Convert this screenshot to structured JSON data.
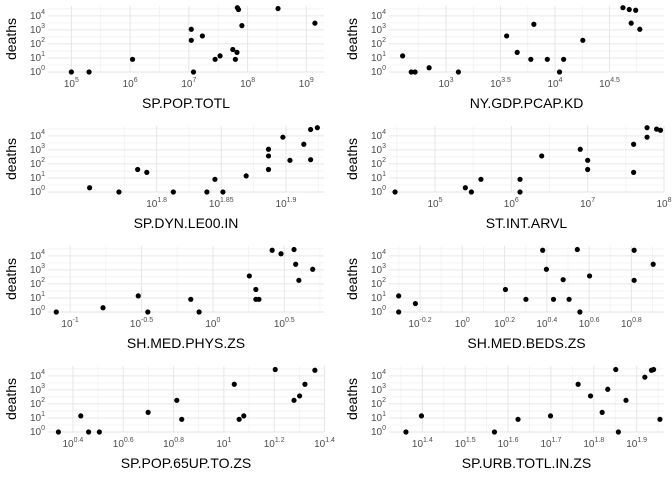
{
  "chart_data": [
    {
      "type": "scatter",
      "xlabel": "SP.POP.TOTL",
      "ylabel": "deaths",
      "xscale": "log10",
      "yscale": "log10",
      "xlim": [
        40000,
        2000000000
      ],
      "ylim": [
        1,
        50000
      ],
      "xticks": [
        "10^5",
        "10^6",
        "10^7",
        "10^8",
        "10^9"
      ],
      "yticks": [
        "10^0",
        "10^1",
        "10^2",
        "10^3",
        "10^4"
      ],
      "points": [
        [
          100000,
          1
        ],
        [
          200000,
          1
        ],
        [
          1100000,
          8
        ],
        [
          11000000,
          1100
        ],
        [
          11000000,
          180
        ],
        [
          12000000,
          1
        ],
        [
          17000000,
          370
        ],
        [
          28000000,
          8
        ],
        [
          34000000,
          14
        ],
        [
          56000000,
          40
        ],
        [
          66000000,
          25
        ],
        [
          62000000,
          8
        ],
        [
          67000000,
          38000
        ],
        [
          70000000,
          28000
        ],
        [
          80000000,
          2000
        ],
        [
          330000000,
          33000
        ],
        [
          1400000000,
          3000
        ]
      ]
    },
    {
      "type": "scatter",
      "xlabel": "NY.GDP.PCAP.KD",
      "ylabel": "deaths",
      "xscale": "log10",
      "yscale": "log10",
      "xlim": [
        300,
        100000
      ],
      "ylim": [
        1,
        50000
      ],
      "xticks": [
        "10^3",
        "10^3.5",
        "10^4",
        "10^4.5"
      ],
      "yticks": [
        "10^0",
        "10^1",
        "10^2",
        "10^3",
        "10^4"
      ],
      "points": [
        [
          400,
          14
        ],
        [
          480,
          1
        ],
        [
          520,
          1
        ],
        [
          700,
          2
        ],
        [
          1300,
          1
        ],
        [
          3600,
          370
        ],
        [
          4500,
          25
        ],
        [
          6000,
          8
        ],
        [
          6400,
          2500
        ],
        [
          8500,
          8
        ],
        [
          11000,
          1
        ],
        [
          12000,
          8
        ],
        [
          18000,
          180
        ],
        [
          42000,
          38000
        ],
        [
          48000,
          28000
        ],
        [
          50000,
          3000
        ],
        [
          55000,
          25000
        ],
        [
          60000,
          1100
        ]
      ]
    },
    {
      "type": "scatter",
      "xlabel": "SP.DYN.LE00.IN",
      "ylabel": "deaths",
      "xscale": "log10",
      "yscale": "log10",
      "xlim": [
        52,
        85
      ],
      "ylim": [
        1,
        50000
      ],
      "xticks": [
        "10^1.8",
        "10^1.85",
        "10^1.9"
      ],
      "yticks": [
        "10^0",
        "10^1",
        "10^2",
        "10^3",
        "10^4"
      ],
      "points": [
        [
          56,
          2
        ],
        [
          59,
          1
        ],
        [
          61,
          40
        ],
        [
          62,
          25
        ],
        [
          65,
          1
        ],
        [
          69,
          1
        ],
        [
          70,
          8
        ],
        [
          71,
          1
        ],
        [
          74,
          14
        ],
        [
          77,
          370
        ],
        [
          77,
          1100
        ],
        [
          77,
          40
        ],
        [
          79,
          8000
        ],
        [
          80,
          180
        ],
        [
          82,
          2500
        ],
        [
          83,
          28000
        ],
        [
          84,
          38000
        ],
        [
          83,
          200
        ]
      ]
    },
    {
      "type": "scatter",
      "xlabel": "ST.INT.ARVL",
      "ylabel": "deaths",
      "xscale": "log10",
      "yscale": "log10",
      "xlim": [
        25000,
        100000000
      ],
      "ylim": [
        1,
        50000
      ],
      "xticks": [
        "10^5",
        "10^6",
        "10^7",
        "10^8"
      ],
      "yticks": [
        "10^0",
        "10^1",
        "10^2",
        "10^3",
        "10^4"
      ],
      "points": [
        [
          30000,
          1
        ],
        [
          250000,
          2
        ],
        [
          300000,
          1
        ],
        [
          400000,
          8
        ],
        [
          1300000,
          8
        ],
        [
          1300000,
          1
        ],
        [
          2500000,
          370
        ],
        [
          8000000,
          1100
        ],
        [
          10000000,
          180
        ],
        [
          10000000,
          40
        ],
        [
          40000000,
          25
        ],
        [
          40000000,
          2500
        ],
        [
          60000000,
          38000
        ],
        [
          60000000,
          8000
        ],
        [
          80000000,
          30000
        ],
        [
          90000000,
          25000
        ]
      ]
    },
    {
      "type": "scatter",
      "xlabel": "SH.MED.PHYS.ZS",
      "ylabel": "deaths",
      "xscale": "log10",
      "yscale": "log10",
      "xlim": [
        0.07,
        6
      ],
      "ylim": [
        1,
        50000
      ],
      "xticks": [
        "10^-1",
        "10^-0.5",
        "10^0",
        "10^0.5"
      ],
      "yticks": [
        "10^0",
        "10^1",
        "10^2",
        "10^3",
        "10^4"
      ],
      "points": [
        [
          0.08,
          1
        ],
        [
          0.17,
          2
        ],
        [
          0.3,
          14
        ],
        [
          0.35,
          1
        ],
        [
          0.7,
          8
        ],
        [
          0.8,
          1
        ],
        [
          1.8,
          370
        ],
        [
          2.0,
          8
        ],
        [
          2.0,
          40
        ],
        [
          2.1,
          8
        ],
        [
          2.6,
          25000
        ],
        [
          3.0,
          14000
        ],
        [
          3.7,
          28000
        ],
        [
          3.8,
          2500
        ],
        [
          4.0,
          180
        ],
        [
          5.0,
          1100
        ]
      ]
    },
    {
      "type": "scatter",
      "xlabel": "SH.MED.BEDS.ZS",
      "ylabel": "deaths",
      "xscale": "log10",
      "yscale": "log10",
      "xlim": [
        0.45,
        9
      ],
      "ylim": [
        1,
        50000
      ],
      "xticks": [
        "10^-0.2",
        "10^0",
        "10^0.2",
        "10^0.4",
        "10^0.6",
        "10^0.8"
      ],
      "yticks": [
        "10^0",
        "10^1",
        "10^2",
        "10^3",
        "10^4"
      ],
      "points": [
        [
          0.5,
          14
        ],
        [
          0.5,
          1
        ],
        [
          0.6,
          4
        ],
        [
          1.6,
          40
        ],
        [
          2.0,
          8
        ],
        [
          2.4,
          25000
        ],
        [
          2.5,
          1100
        ],
        [
          2.7,
          8
        ],
        [
          3.0,
          200
        ],
        [
          3.2,
          8
        ],
        [
          3.5,
          28000
        ],
        [
          3.6,
          1
        ],
        [
          4.0,
          370
        ],
        [
          6.5,
          25000
        ],
        [
          6.5,
          180
        ],
        [
          8.0,
          2500
        ]
      ]
    },
    {
      "type": "scatter",
      "xlabel": "SP.POP.65UP.TO.ZS",
      "ylabel": "deaths",
      "xscale": "log10",
      "yscale": "log10",
      "xlim": [
        2,
        25
      ],
      "ylim": [
        1,
        50000
      ],
      "xticks": [
        "10^0.4",
        "10^0.6",
        "10^0.8",
        "10^1",
        "10^1.2",
        "10^1.4"
      ],
      "yticks": [
        "10^0",
        "10^1",
        "10^2",
        "10^3",
        "10^4"
      ],
      "points": [
        [
          2.2,
          1
        ],
        [
          2.7,
          14
        ],
        [
          2.9,
          1
        ],
        [
          3.2,
          1
        ],
        [
          5,
          25
        ],
        [
          6.5,
          180
        ],
        [
          6.8,
          8
        ],
        [
          11,
          2500
        ],
        [
          11.5,
          8
        ],
        [
          12,
          14
        ],
        [
          16,
          28000
        ],
        [
          19,
          180
        ],
        [
          20,
          370
        ],
        [
          21,
          2500
        ],
        [
          23,
          25000
        ]
      ]
    },
    {
      "type": "scatter",
      "xlabel": "SP.URB.TOTL.IN.ZS",
      "ylabel": "deaths",
      "xscale": "log10",
      "yscale": "log10",
      "xlim": [
        21,
        92
      ],
      "ylim": [
        1,
        50000
      ],
      "xticks": [
        "10^1.4",
        "10^1.5",
        "10^1.6",
        "10^1.7",
        "10^1.8",
        "10^1.9"
      ],
      "yticks": [
        "10^0",
        "10^1",
        "10^2",
        "10^3",
        "10^4"
      ],
      "points": [
        [
          23,
          1
        ],
        [
          25,
          14
        ],
        [
          37,
          1
        ],
        [
          42,
          8
        ],
        [
          50,
          14
        ],
        [
          58,
          2500
        ],
        [
          62,
          370
        ],
        [
          66,
          25
        ],
        [
          68,
          1100
        ],
        [
          71,
          28000
        ],
        [
          72,
          1
        ],
        [
          75,
          180
        ],
        [
          83,
          8000
        ],
        [
          86,
          25000
        ],
        [
          87,
          28000
        ],
        [
          90,
          8
        ]
      ]
    }
  ]
}
